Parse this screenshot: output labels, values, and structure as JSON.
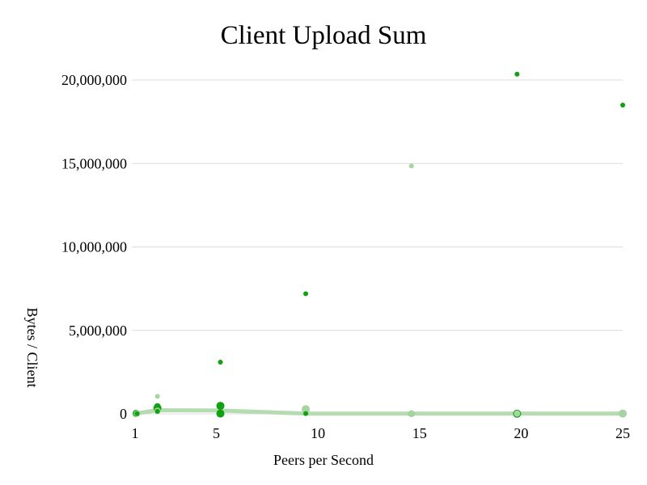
{
  "chart_data": {
    "type": "scatter",
    "title": "Client Upload Sum",
    "xlabel": "Peers per Second",
    "ylabel": "Bytes / Client",
    "xlim": [
      1,
      25
    ],
    "ylim": [
      0,
      20000000
    ],
    "x_ticks": [
      {
        "value": 1,
        "label": "1"
      },
      {
        "value": 5,
        "label": "5"
      },
      {
        "value": 10,
        "label": "10"
      },
      {
        "value": 15,
        "label": "15"
      },
      {
        "value": 20,
        "label": "20"
      },
      {
        "value": 25,
        "label": "25"
      }
    ],
    "y_ticks": [
      {
        "value": 0,
        "label": "0"
      },
      {
        "value": 5000000,
        "label": "5,000,000"
      },
      {
        "value": 10000000,
        "label": "10,000,000"
      },
      {
        "value": 15000000,
        "label": "15,000,000"
      },
      {
        "value": 20000000,
        "label": "20,000,000"
      }
    ],
    "grid": true,
    "series": [
      {
        "kind": "line",
        "color": "#b5dcb0",
        "points": [
          {
            "x": 1,
            "y": 20000
          },
          {
            "x": 2.1,
            "y": 220000
          },
          {
            "x": 5.2,
            "y": 200000
          },
          {
            "x": 9.4,
            "y": 20000
          },
          {
            "x": 14.6,
            "y": 20000
          },
          {
            "x": 19.8,
            "y": 20000
          },
          {
            "x": 25,
            "y": 20000
          }
        ]
      },
      {
        "kind": "scatter",
        "color": "#10a010",
        "points": [
          {
            "x": 1.05,
            "y": 10000,
            "size": 4
          },
          {
            "x": 1.05,
            "y": 50000,
            "size": 4
          },
          {
            "x": 1.05,
            "y": 80000,
            "size": 3
          },
          {
            "x": 2.1,
            "y": 350000,
            "size": 5
          },
          {
            "x": 2.1,
            "y": 450000,
            "size": 4
          },
          {
            "x": 5.2,
            "y": 3100000,
            "size": 3
          },
          {
            "x": 5.2,
            "y": 480000,
            "size": 5
          },
          {
            "x": 5.2,
            "y": 20000,
            "size": 5
          },
          {
            "x": 9.4,
            "y": 7200000,
            "size": 3
          },
          {
            "x": 14.6,
            "y": 10000,
            "size": 4
          },
          {
            "x": 19.8,
            "y": 20350000,
            "size": 3
          },
          {
            "x": 19.8,
            "y": 10000,
            "size": 5
          },
          {
            "x": 25,
            "y": 18500000,
            "size": 3
          },
          {
            "x": 25,
            "y": 10000,
            "size": 4
          }
        ]
      },
      {
        "kind": "scatter",
        "color": "#a5d4a0",
        "points": [
          {
            "x": 1.1,
            "y": 20000,
            "size": 4
          },
          {
            "x": 2.1,
            "y": 1050000,
            "size": 3
          },
          {
            "x": 2.1,
            "y": 180000,
            "size": 4
          },
          {
            "x": 9.4,
            "y": 280000,
            "size": 5
          },
          {
            "x": 14.6,
            "y": 14850000,
            "size": 3
          },
          {
            "x": 14.6,
            "y": 20000,
            "size": 4
          },
          {
            "x": 19.8,
            "y": 20000,
            "size": 4
          },
          {
            "x": 25,
            "y": 20000,
            "size": 5
          }
        ]
      },
      {
        "kind": "scatter",
        "color": "#10a010",
        "points": [
          {
            "x": 1.1,
            "y": 10000,
            "size": 3
          },
          {
            "x": 2.1,
            "y": 150000,
            "size": 3
          },
          {
            "x": 9.4,
            "y": 20000,
            "size": 3
          }
        ]
      }
    ]
  }
}
